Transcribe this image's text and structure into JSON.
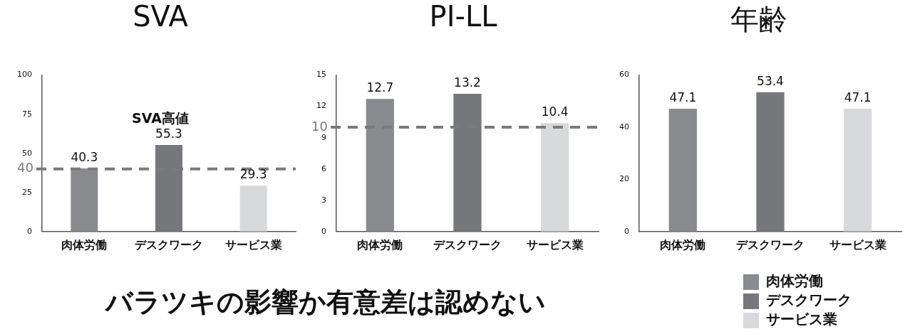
{
  "chart_data": [
    {
      "type": "bar",
      "title": "SVA",
      "categories": [
        "肉体労働",
        "デスクワーク",
        "サービス業"
      ],
      "values": [
        40.3,
        55.3,
        29.3
      ],
      "colors": [
        "#8a8b8f",
        "#76777b",
        "#d8d9db"
      ],
      "ylim": [
        0,
        100
      ],
      "yticks": [
        0,
        25,
        50,
        75,
        100
      ],
      "data_labels": true,
      "grid": false,
      "ref_lines": [
        {
          "axis": "y",
          "value": 40,
          "label": "40",
          "color": "#7a7a7a",
          "line_style": "dashed"
        }
      ],
      "annotations": [
        "SVA高値"
      ]
    },
    {
      "type": "bar",
      "title": "PI-LL",
      "categories": [
        "肉体労働",
        "デスクワーク",
        "サービス業"
      ],
      "values": [
        12.7,
        13.2,
        10.4
      ],
      "colors": [
        "#8a8b8f",
        "#76777b",
        "#d8d9db"
      ],
      "ylim": [
        0,
        15
      ],
      "yticks": [
        0,
        3,
        6,
        9,
        12,
        15
      ],
      "data_labels": true,
      "grid": false,
      "ref_lines": [
        {
          "axis": "y",
          "value": 10,
          "label": "10",
          "color": "#7a7a7a",
          "line_style": "dashed"
        }
      ]
    },
    {
      "type": "bar",
      "title": "年齢",
      "categories": [
        "肉体労働",
        "デスクワーク",
        "サービス業"
      ],
      "series": [
        {
          "name": "肉体労働",
          "color": "#8a8b8f",
          "values": [
            47.1,
            null,
            null
          ]
        },
        {
          "name": "デスクワーク",
          "color": "#76777b",
          "values": [
            null,
            53.4,
            null
          ]
        },
        {
          "name": "サービス業",
          "color": "#d8d9db",
          "values": [
            null,
            null,
            47.1
          ]
        }
      ],
      "ylim": [
        0,
        60
      ],
      "yticks": [
        0,
        20,
        40,
        60
      ],
      "data_labels": true,
      "grid": false,
      "legend": "bottom right"
    },
    {
      "type": "other",
      "title": "バラツキの影響か有意差は認めない"
    }
  ]
}
